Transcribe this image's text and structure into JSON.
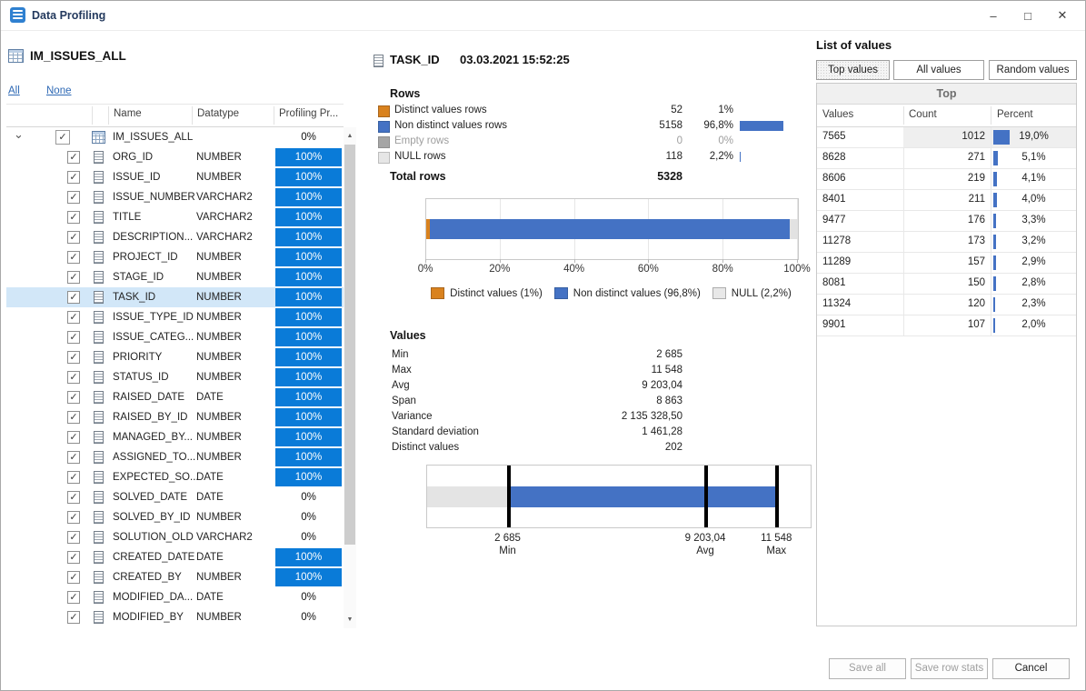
{
  "window": {
    "title": "Data Profiling",
    "controls": {
      "minimize": "–",
      "maximize": "□",
      "close": "✕"
    }
  },
  "left": {
    "table_name": "IM_ISSUES_ALL",
    "links": {
      "all": "All",
      "none": "None"
    },
    "columns": {
      "name": "Name",
      "datatype": "Datatype",
      "profiling": "Profiling Pr..."
    },
    "check_glyph": "✓",
    "expand_icon": "⌄",
    "scrollbar": {
      "up": "▲",
      "down": "▼"
    },
    "rows": [
      {
        "name": "IM_ISSUES_ALL",
        "datatype": "",
        "progress": "0%",
        "type": "table",
        "selected": false
      },
      {
        "name": "ORG_ID",
        "datatype": "NUMBER",
        "progress": "100%",
        "type": "column",
        "selected": false
      },
      {
        "name": "ISSUE_ID",
        "datatype": "NUMBER",
        "progress": "100%",
        "type": "column",
        "selected": false
      },
      {
        "name": "ISSUE_NUMBER",
        "datatype": "VARCHAR2",
        "progress": "100%",
        "type": "column",
        "selected": false
      },
      {
        "name": "TITLE",
        "datatype": "VARCHAR2",
        "progress": "100%",
        "type": "column",
        "selected": false
      },
      {
        "name": "DESCRIPTION...",
        "datatype": "VARCHAR2",
        "progress": "100%",
        "type": "column",
        "selected": false
      },
      {
        "name": "PROJECT_ID",
        "datatype": "NUMBER",
        "progress": "100%",
        "type": "column",
        "selected": false
      },
      {
        "name": "STAGE_ID",
        "datatype": "NUMBER",
        "progress": "100%",
        "type": "column",
        "selected": false
      },
      {
        "name": "TASK_ID",
        "datatype": "NUMBER",
        "progress": "100%",
        "type": "column",
        "selected": true
      },
      {
        "name": "ISSUE_TYPE_ID",
        "datatype": "NUMBER",
        "progress": "100%",
        "type": "column",
        "selected": false
      },
      {
        "name": "ISSUE_CATEG...",
        "datatype": "NUMBER",
        "progress": "100%",
        "type": "column",
        "selected": false
      },
      {
        "name": "PRIORITY",
        "datatype": "NUMBER",
        "progress": "100%",
        "type": "column",
        "selected": false
      },
      {
        "name": "STATUS_ID",
        "datatype": "NUMBER",
        "progress": "100%",
        "type": "column",
        "selected": false
      },
      {
        "name": "RAISED_DATE",
        "datatype": "DATE",
        "progress": "100%",
        "type": "column",
        "selected": false
      },
      {
        "name": "RAISED_BY_ID",
        "datatype": "NUMBER",
        "progress": "100%",
        "type": "column",
        "selected": false
      },
      {
        "name": "MANAGED_BY...",
        "datatype": "NUMBER",
        "progress": "100%",
        "type": "column",
        "selected": false
      },
      {
        "name": "ASSIGNED_TO...",
        "datatype": "NUMBER",
        "progress": "100%",
        "type": "column",
        "selected": false
      },
      {
        "name": "EXPECTED_SO...",
        "datatype": "DATE",
        "progress": "100%",
        "type": "column",
        "selected": false
      },
      {
        "name": "SOLVED_DATE",
        "datatype": "DATE",
        "progress": "0%",
        "type": "column",
        "selected": false
      },
      {
        "name": "SOLVED_BY_ID",
        "datatype": "NUMBER",
        "progress": "0%",
        "type": "column",
        "selected": false
      },
      {
        "name": "SOLUTION_OLD",
        "datatype": "VARCHAR2",
        "progress": "0%",
        "type": "column",
        "selected": false
      },
      {
        "name": "CREATED_DATE",
        "datatype": "DATE",
        "progress": "100%",
        "type": "column",
        "selected": false
      },
      {
        "name": "CREATED_BY",
        "datatype": "NUMBER",
        "progress": "100%",
        "type": "column",
        "selected": false
      },
      {
        "name": "MODIFIED_DA...",
        "datatype": "DATE",
        "progress": "0%",
        "type": "column",
        "selected": false
      },
      {
        "name": "MODIFIED_BY",
        "datatype": "NUMBER",
        "progress": "0%",
        "type": "column",
        "selected": false
      }
    ]
  },
  "mid": {
    "column_name": "TASK_ID",
    "timestamp": "03.03.2021 15:52:25",
    "rows_section": {
      "title": "Rows",
      "items": [
        {
          "label": "Distinct values rows",
          "count": "52",
          "pct_label": "1%",
          "pct": 1,
          "color": "#D9821E",
          "border": "#A8651D",
          "disabled": false
        },
        {
          "label": "Non distinct values rows",
          "count": "5158",
          "pct_label": "96,8%",
          "pct": 96.8,
          "color": "#4472C4",
          "border": "#365FA2",
          "disabled": false
        },
        {
          "label": "Empty rows",
          "count": "0",
          "pct_label": "0%",
          "pct": 0,
          "color": "#A5A5A5",
          "border": "#8F8F8F",
          "disabled": true
        },
        {
          "label": "NULL rows",
          "count": "118",
          "pct_label": "2,2%",
          "pct": 2.2,
          "color": "#E6E6E6",
          "border": "#BDBDBD",
          "disabled": false
        }
      ],
      "total_label": "Total rows",
      "total_value": "5328"
    },
    "bar_chart": {
      "type": "stacked-bar",
      "segments": [
        {
          "name": "Distinct values",
          "pct": 1,
          "color": "#D9821E"
        },
        {
          "name": "Non distinct values",
          "pct": 96.8,
          "color": "#4472C4"
        },
        {
          "name": "NULL",
          "pct": 2.2,
          "color": "#E2E2E2"
        }
      ],
      "ticks": [
        "0%",
        "20%",
        "40%",
        "60%",
        "80%",
        "100%"
      ],
      "legend": [
        {
          "label": "Distinct values (1%)",
          "color": "#D9821E",
          "border": "#A8651D"
        },
        {
          "label": "Non distinct values (96,8%)",
          "color": "#4472C4",
          "border": "#365FA2"
        },
        {
          "label": "NULL (2,2%)",
          "color": "#E8E8E8",
          "border": "#ACACAC"
        }
      ]
    },
    "values_section": {
      "title": "Values",
      "items": [
        {
          "label": "Min",
          "value": "2 685"
        },
        {
          "label": "Max",
          "value": "11 548"
        },
        {
          "label": "Avg",
          "value": "9 203,04"
        },
        {
          "label": "Span",
          "value": "8 863"
        },
        {
          "label": "Variance",
          "value": "2 135 328,50"
        },
        {
          "label": "Standard deviation",
          "value": "1 461,28"
        },
        {
          "label": "Distinct values",
          "value": "202"
        }
      ]
    },
    "range_chart": {
      "type": "range-bar",
      "axis_max": 12650,
      "markers": [
        {
          "num": 2685,
          "value": "2 685",
          "label": "Min"
        },
        {
          "num": 9203.04,
          "value": "9 203,04",
          "label": "Avg"
        },
        {
          "num": 11548,
          "value": "11 548",
          "label": "Max"
        }
      ],
      "bar_color": "#4472C4",
      "lead_color": "#E4E4E4"
    }
  },
  "right": {
    "title": "List of values",
    "tabs": [
      {
        "label": "Top values",
        "active": true
      },
      {
        "label": "All values",
        "active": false
      },
      {
        "label": "Random values",
        "active": false
      }
    ],
    "group_header": "Top",
    "columns": {
      "values": "Values",
      "count": "Count",
      "percent": "Percent"
    },
    "rows": [
      {
        "value": "7565",
        "count": "1012",
        "percent": "19,0%",
        "pct": 19.0,
        "selected": true
      },
      {
        "value": "8628",
        "count": "271",
        "percent": "5,1%",
        "pct": 5.1,
        "selected": false
      },
      {
        "value": "8606",
        "count": "219",
        "percent": "4,1%",
        "pct": 4.1,
        "selected": false
      },
      {
        "value": "8401",
        "count": "211",
        "percent": "4,0%",
        "pct": 4.0,
        "selected": false
      },
      {
        "value": "9477",
        "count": "176",
        "percent": "3,3%",
        "pct": 3.3,
        "selected": false
      },
      {
        "value": "11278",
        "count": "173",
        "percent": "3,2%",
        "pct": 3.2,
        "selected": false
      },
      {
        "value": "11289",
        "count": "157",
        "percent": "2,9%",
        "pct": 2.9,
        "selected": false
      },
      {
        "value": "8081",
        "count": "150",
        "percent": "2,8%",
        "pct": 2.8,
        "selected": false
      },
      {
        "value": "11324",
        "count": "120",
        "percent": "2,3%",
        "pct": 2.3,
        "selected": false
      },
      {
        "value": "9901",
        "count": "107",
        "percent": "2,0%",
        "pct": 2.0,
        "selected": false
      }
    ]
  },
  "footer": {
    "buttons": [
      {
        "label": "Save all",
        "disabled": true
      },
      {
        "label": "Save row stats",
        "disabled": true
      },
      {
        "label": "Cancel",
        "disabled": false
      }
    ]
  }
}
